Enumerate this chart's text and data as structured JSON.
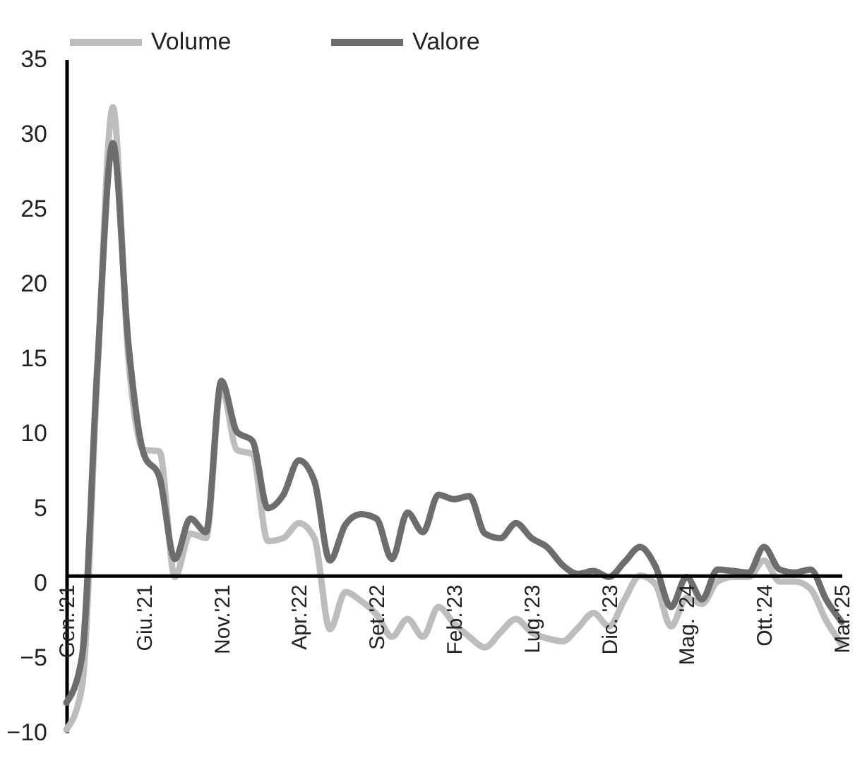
{
  "chart_data": {
    "type": "line",
    "categories": [
      "Gen.'21",
      null,
      null,
      null,
      null,
      "Giu.'21",
      null,
      null,
      null,
      null,
      "Nov.'21",
      null,
      null,
      null,
      null,
      "Apr.'22",
      null,
      null,
      null,
      null,
      "Set.'22",
      null,
      null,
      null,
      null,
      "Feb.'23",
      null,
      null,
      null,
      null,
      "Lug.'23",
      null,
      null,
      null,
      null,
      "Dic. '23",
      null,
      null,
      null,
      null,
      "Mag. '24",
      null,
      null,
      null,
      null,
      "Ott.'24",
      null,
      null,
      null,
      null,
      "Mar.'25"
    ],
    "series": [
      {
        "name": "Volume",
        "color": "#bdbdbf",
        "values": [
          -9.8,
          -7,
          14,
          31.8,
          15,
          8.9,
          8.8,
          0.4,
          3.3,
          3.0,
          13.1,
          8.9,
          8.6,
          2.8,
          3.0,
          4.0,
          3.0,
          -3.1,
          -0.6,
          -1.2,
          -2.1,
          -3.6,
          -2.4,
          -3.6,
          -1.6,
          -2.7,
          -3.6,
          -4.3,
          -3.3,
          -2.4,
          -3.3,
          -3.7,
          -3.9,
          -3.0,
          -2.0,
          -2.9,
          -1.1,
          0.5,
          -0.1,
          -2.9,
          -1.0,
          -1.4,
          0.1,
          0.4,
          0.4,
          1.5,
          0.1,
          0.1,
          -0.4,
          -2.5,
          -4.1
        ]
      },
      {
        "name": "Valore",
        "color": "#6d6d6f",
        "values": [
          -8,
          -5,
          14.5,
          29.4,
          16,
          8.6,
          7.1,
          1.6,
          4.3,
          3.4,
          13.5,
          10.1,
          9.5,
          5.0,
          5.9,
          8.2,
          6.8,
          1.5,
          3.9,
          4.6,
          4.3,
          1.6,
          4.7,
          3.4,
          5.9,
          5.6,
          5.8,
          3.3,
          3.0,
          4.0,
          3.0,
          2.4,
          1.2,
          0.6,
          0.8,
          0.4,
          1.4,
          2.4,
          1.1,
          -1.6,
          0.4,
          -1.1,
          0.9,
          0.8,
          0.7,
          2.4,
          0.9,
          0.7,
          0.9,
          -1.1,
          -2.6
        ]
      }
    ],
    "ylim": [
      -10,
      35
    ],
    "yticks": [
      -10,
      -5,
      0,
      5,
      10,
      15,
      20,
      25,
      30,
      35
    ],
    "legend": "top",
    "line_style": "solid"
  }
}
